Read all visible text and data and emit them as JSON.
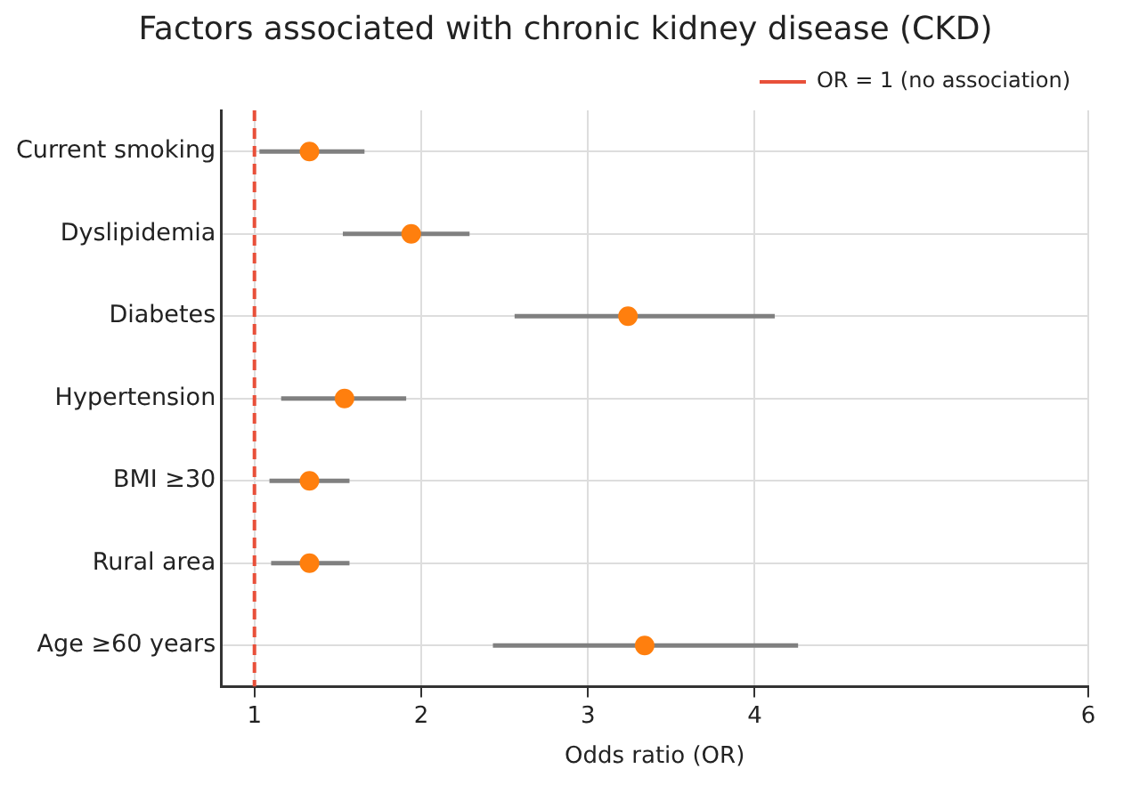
{
  "chart_data": {
    "type": "scatter",
    "orientation": "horizontal",
    "title": "Factors associated with chronic kidney disease (CKD)",
    "xlabel": "Odds ratio (OR)",
    "categories": [
      "Current smoking",
      "Dyslipidemia",
      "Diabetes",
      "Hypertension",
      "BMI ≥30",
      "Rural area",
      "Age ≥60 years"
    ],
    "values": [
      1.33,
      1.94,
      3.24,
      1.54,
      1.33,
      1.33,
      3.34
    ],
    "errors": [
      [
        1.03,
        1.66
      ],
      [
        1.53,
        2.29
      ],
      [
        2.56,
        4.12
      ],
      [
        1.16,
        1.91
      ],
      [
        1.09,
        1.57
      ],
      [
        1.1,
        1.57
      ],
      [
        2.43,
        4.26
      ]
    ],
    "color": "#ff7f0e",
    "marker": "circle",
    "xlim": [
      0.8,
      6
    ],
    "xticks": [
      1,
      2,
      3,
      4,
      6
    ],
    "ref_lines": [
      {
        "axis": "x",
        "value": 1,
        "label": "OR = 1 (no association)",
        "color": "#e8503a",
        "line_style": "dashed"
      }
    ],
    "grid": true,
    "legend": "top right"
  }
}
